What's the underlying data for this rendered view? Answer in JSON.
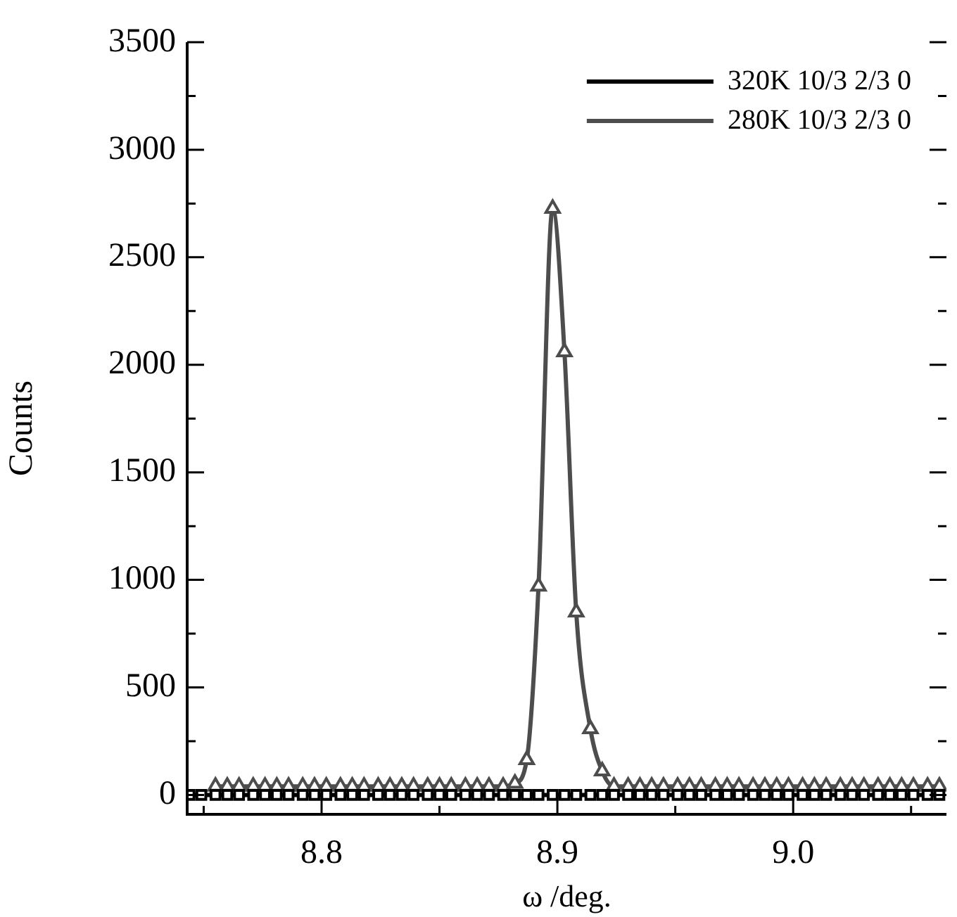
{
  "chart_data": {
    "type": "line",
    "xlabel": "ω /deg.",
    "ylabel": "Counts",
    "x": [
      8.744,
      8.749,
      8.755,
      8.76,
      8.765,
      8.771,
      8.776,
      8.781,
      8.786,
      8.792,
      8.797,
      8.802,
      8.808,
      8.813,
      8.818,
      8.824,
      8.829,
      8.834,
      8.839,
      8.845,
      8.85,
      8.855,
      8.861,
      8.866,
      8.871,
      8.877,
      8.882,
      8.887,
      8.892,
      8.898,
      8.903,
      8.908,
      8.914,
      8.919,
      8.924,
      8.93,
      8.935,
      8.94,
      8.945,
      8.951,
      8.956,
      8.961,
      8.967,
      8.972,
      8.977,
      8.983,
      8.988,
      8.993,
      8.998,
      9.004,
      9.009,
      9.014,
      9.02,
      9.025,
      9.03,
      9.036,
      9.041,
      9.046,
      9.051,
      9.057,
      9.062
    ],
    "series": [
      {
        "name": "320K 10/3 2/3 0",
        "color": "#000000",
        "marker": "square",
        "values": [
          0,
          0,
          0,
          0,
          0,
          0,
          0,
          0,
          0,
          0,
          0,
          0,
          0,
          0,
          0,
          0,
          0,
          0,
          0,
          0,
          0,
          0,
          0,
          0,
          0,
          0,
          0,
          0,
          0,
          0,
          0,
          0,
          0,
          0,
          0,
          0,
          0,
          0,
          0,
          0,
          0,
          0,
          0,
          0,
          0,
          0,
          0,
          0,
          0,
          0,
          0,
          0,
          0,
          0,
          0,
          0,
          0,
          0,
          0,
          0,
          0
        ]
      },
      {
        "name": "280K 10/3 2/3 0",
        "color": "#4d4d4d",
        "marker": "triangle",
        "values": [
          null,
          null,
          40,
          40,
          40,
          40,
          40,
          40,
          40,
          40,
          40,
          40,
          40,
          40,
          40,
          40,
          40,
          40,
          40,
          40,
          40,
          40,
          40,
          40,
          40,
          40,
          54,
          163,
          970,
          2727,
          2060,
          850,
          307,
          111,
          40,
          40,
          40,
          40,
          40,
          40,
          40,
          40,
          40,
          40,
          40,
          40,
          40,
          40,
          40,
          40,
          40,
          40,
          40,
          40,
          40,
          40,
          40,
          40,
          40,
          40,
          40
        ]
      }
    ],
    "xlim": [
      8.743,
      9.065
    ],
    "xticks": [
      {
        "value": 8.8,
        "label": "8.8"
      },
      {
        "value": 8.9,
        "label": "8.9"
      },
      {
        "value": 9.0,
        "label": "9.0"
      }
    ],
    "ylim": [
      -90,
      3500
    ],
    "yticks": [
      0,
      500,
      1000,
      1500,
      2000,
      2500,
      3000,
      3500
    ],
    "grid": false,
    "legend": "top right",
    "line_style": "solid"
  }
}
